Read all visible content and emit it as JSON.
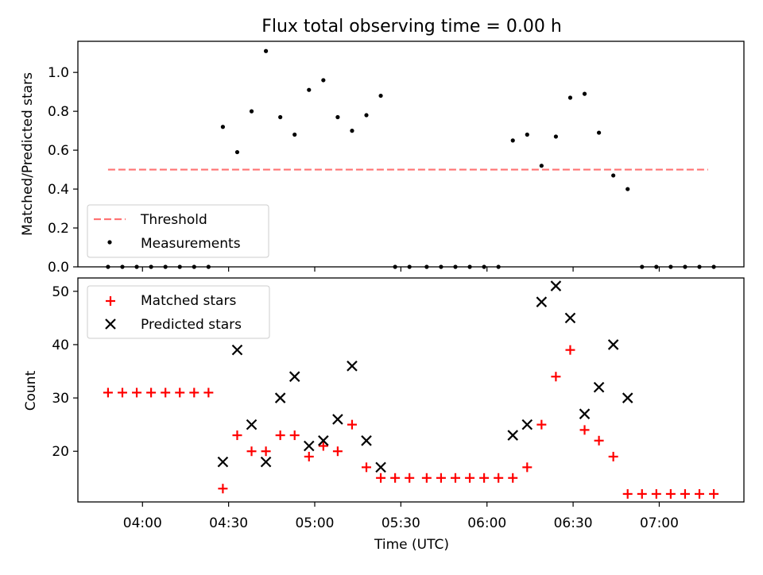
{
  "chart_data": [
    {
      "type": "scatter",
      "title": "Flux total observing time = 0.00 h",
      "xlabel": "",
      "ylabel": "Matched/Predicted stars",
      "ylim": [
        0,
        1.16
      ],
      "yticks": [
        "0.0",
        "0.2",
        "0.4",
        "0.6",
        "0.8",
        "1.0"
      ],
      "threshold": {
        "name": "Threshold",
        "value": 0.5,
        "color": "#ff7373",
        "x_start": "03:48",
        "x_end": "07:17"
      },
      "series": [
        {
          "name": "Measurements",
          "color": "#000000",
          "x": [
            "03:48",
            "03:53",
            "03:58",
            "04:03",
            "04:08",
            "04:13",
            "04:18",
            "04:23",
            "04:28",
            "04:33",
            "04:38",
            "04:43",
            "04:48",
            "04:53",
            "04:58",
            "05:03",
            "05:08",
            "05:13",
            "05:18",
            "05:23",
            "05:28",
            "05:33",
            "05:39",
            "05:44",
            "05:49",
            "05:54",
            "05:59",
            "06:04",
            "06:09",
            "06:14",
            "06:19",
            "06:24",
            "06:29",
            "06:34",
            "06:39",
            "06:44",
            "06:49",
            "06:54",
            "06:59",
            "07:04",
            "07:09",
            "07:14",
            "07:19"
          ],
          "values": [
            0,
            0,
            0,
            0,
            0,
            0,
            0,
            0,
            0.72,
            0.59,
            0.8,
            1.11,
            0.77,
            0.68,
            0.91,
            0.96,
            0.77,
            0.7,
            0.78,
            0.88,
            0,
            0,
            0,
            0,
            0,
            0,
            0,
            0,
            0.65,
            0.68,
            0.52,
            0.67,
            0.87,
            0.89,
            0.69,
            0.47,
            0.4,
            0,
            0,
            0,
            0,
            0,
            0
          ]
        }
      ],
      "legend_position": "lower-left"
    },
    {
      "type": "scatter",
      "title": "",
      "xlabel": "Time (UTC)",
      "ylabel": "Count",
      "ylim": [
        10.5,
        52.5
      ],
      "yticks": [
        "20",
        "30",
        "40",
        "50"
      ],
      "xticks": [
        "04:00",
        "04:30",
        "05:00",
        "05:30",
        "06:00",
        "06:30",
        "07:00"
      ],
      "series": [
        {
          "name": "Matched stars",
          "color": "#ff0000",
          "marker": "+",
          "x": [
            "03:48",
            "03:53",
            "03:58",
            "04:03",
            "04:08",
            "04:13",
            "04:18",
            "04:23",
            "04:28",
            "04:33",
            "04:38",
            "04:43",
            "04:48",
            "04:53",
            "04:58",
            "05:03",
            "05:08",
            "05:13",
            "05:18",
            "05:23",
            "05:28",
            "05:33",
            "05:39",
            "05:44",
            "05:49",
            "05:54",
            "05:59",
            "06:04",
            "06:09",
            "06:14",
            "06:19",
            "06:24",
            "06:29",
            "06:34",
            "06:39",
            "06:44",
            "06:49",
            "06:54",
            "06:59",
            "07:04",
            "07:09",
            "07:14",
            "07:19"
          ],
          "values": [
            31,
            31,
            31,
            31,
            31,
            31,
            31,
            31,
            13,
            23,
            20,
            20,
            23,
            23,
            19,
            21,
            20,
            25,
            17,
            15,
            15,
            15,
            15,
            15,
            15,
            15,
            15,
            15,
            15,
            17,
            25,
            34,
            39,
            24,
            22,
            19,
            12,
            12,
            12,
            12,
            12,
            12,
            12
          ]
        },
        {
          "name": "Predicted stars",
          "color": "#000000",
          "marker": "x",
          "x": [
            "04:28",
            "04:33",
            "04:38",
            "04:43",
            "04:48",
            "04:53",
            "04:58",
            "05:03",
            "05:08",
            "05:13",
            "05:18",
            "05:23",
            "06:09",
            "06:14",
            "06:19",
            "06:24",
            "06:29",
            "06:34",
            "06:39",
            "06:44",
            "06:49"
          ],
          "values": [
            18,
            39,
            25,
            18,
            30,
            34,
            21,
            22,
            26,
            36,
            22,
            17,
            23,
            25,
            48,
            51,
            45,
            27,
            32,
            40,
            30
          ]
        }
      ],
      "legend_position": "upper-left"
    }
  ]
}
